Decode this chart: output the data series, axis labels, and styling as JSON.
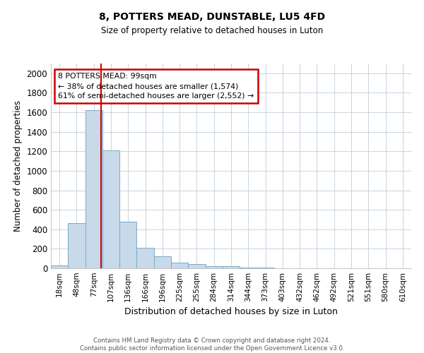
{
  "title": "8, POTTERS MEAD, DUNSTABLE, LU5 4FD",
  "subtitle": "Size of property relative to detached houses in Luton",
  "xlabel": "Distribution of detached houses by size in Luton",
  "ylabel": "Number of detached properties",
  "footer_line1": "Contains HM Land Registry data © Crown copyright and database right 2024.",
  "footer_line2": "Contains public sector information licensed under the Open Government Licence v3.0.",
  "annotation_title": "8 POTTERS MEAD: 99sqm",
  "annotation_line1": "← 38% of detached houses are smaller (1,574)",
  "annotation_line2": "61% of semi-detached houses are larger (2,552) →",
  "bar_color": "#c8d9ea",
  "bar_edge_color": "#7aaac8",
  "vline_color": "#cc0000",
  "annotation_box_edge_color": "#cc0000",
  "background_color": "#ffffff",
  "grid_color": "#c8d4e0",
  "categories": [
    "18sqm",
    "48sqm",
    "77sqm",
    "107sqm",
    "136sqm",
    "166sqm",
    "196sqm",
    "225sqm",
    "255sqm",
    "284sqm",
    "314sqm",
    "344sqm",
    "373sqm",
    "403sqm",
    "432sqm",
    "462sqm",
    "492sqm",
    "521sqm",
    "551sqm",
    "580sqm",
    "610sqm"
  ],
  "values": [
    30,
    460,
    1620,
    1210,
    480,
    210,
    120,
    55,
    40,
    25,
    20,
    10,
    5,
    2,
    1,
    1,
    0,
    0,
    0,
    0,
    0
  ],
  "ylim": [
    0,
    2100
  ],
  "yticks": [
    0,
    200,
    400,
    600,
    800,
    1000,
    1200,
    1400,
    1600,
    1800,
    2000
  ],
  "vline_x_index": 2.42
}
